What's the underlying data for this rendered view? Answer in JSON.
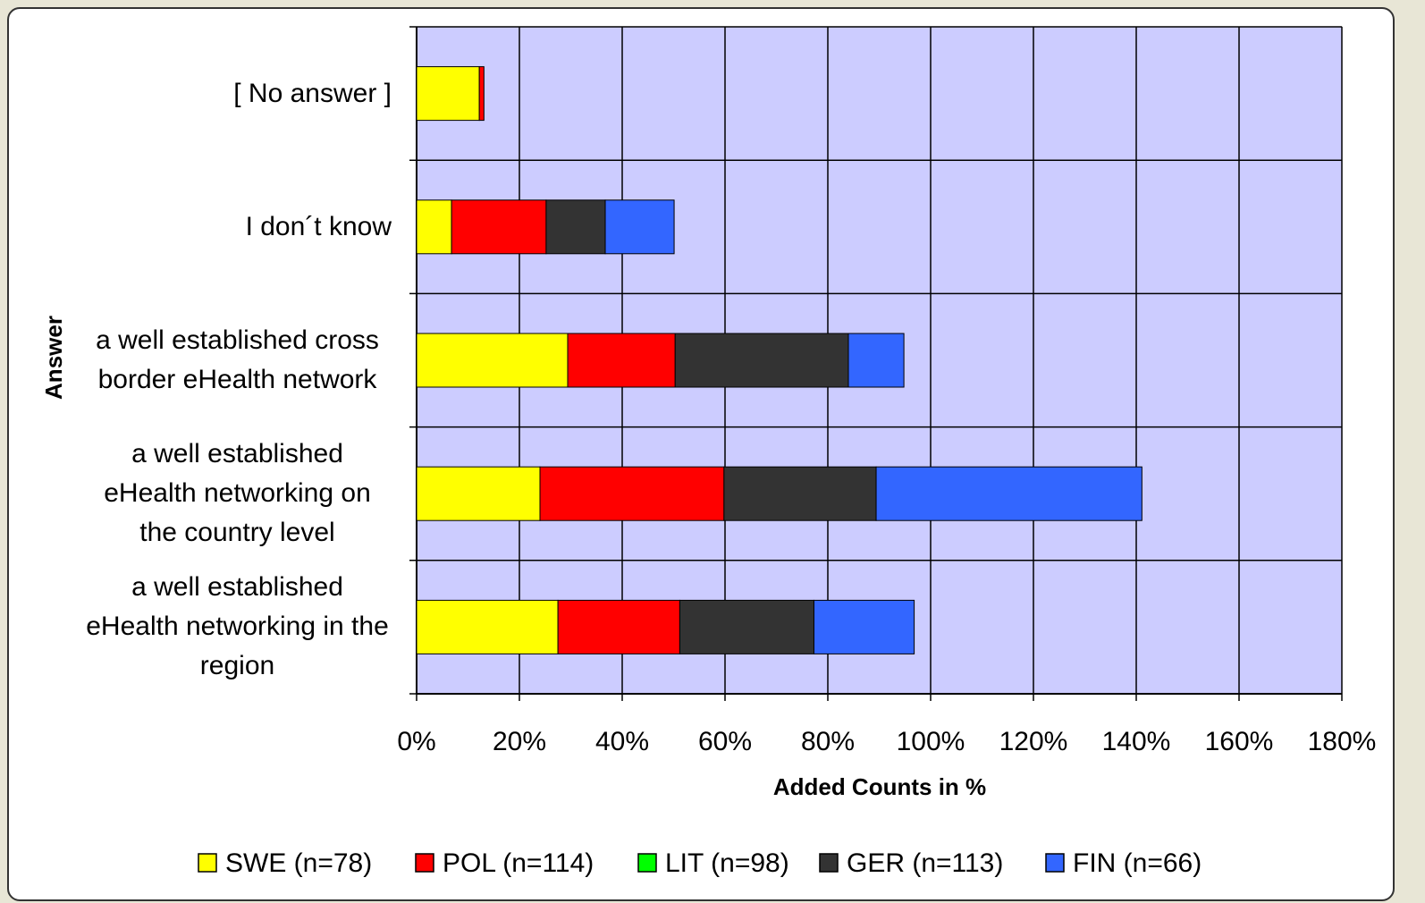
{
  "chart_data": {
    "type": "hbar_stacked",
    "xlabel": "Added Counts in %",
    "ylabel": "Answer",
    "categories": [
      "[ No answer ]",
      "I don´t know",
      "a well established cross border eHealth network",
      "a well established eHealth networking on the country level",
      "a well established eHealth networking in the region"
    ],
    "series": [
      {
        "name": "SWE (n=78)",
        "color": "#ffff00",
        "values": [
          12.2,
          6.8,
          29.4,
          24.0,
          27.5
        ]
      },
      {
        "name": "POL (n=114)",
        "color": "#ff0000",
        "values": [
          0.9,
          18.4,
          20.9,
          35.8,
          23.7
        ]
      },
      {
        "name": "LIT (n=98)",
        "color": "#00ff00",
        "values": [
          0,
          0,
          0,
          0,
          0
        ]
      },
      {
        "name": "GER (n=113)",
        "color": "#333333",
        "values": [
          0,
          11.5,
          33.7,
          29.6,
          26.1
        ]
      },
      {
        "name": "FIN (n=66)",
        "color": "#3366ff",
        "values": [
          0,
          13.4,
          10.8,
          51.7,
          19.5
        ]
      }
    ],
    "xlim": [
      0,
      180
    ],
    "xticks": [
      {
        "value": 0,
        "label": "0%"
      },
      {
        "value": 20,
        "label": "20%"
      },
      {
        "value": 40,
        "label": "40%"
      },
      {
        "value": 60,
        "label": "60%"
      },
      {
        "value": 80,
        "label": "80%"
      },
      {
        "value": 100,
        "label": "100%"
      },
      {
        "value": 120,
        "label": "120%"
      },
      {
        "value": 140,
        "label": "140%"
      },
      {
        "value": 160,
        "label": "160%"
      },
      {
        "value": 180,
        "label": "180%"
      }
    ],
    "grid": true,
    "legend": "bottom"
  }
}
